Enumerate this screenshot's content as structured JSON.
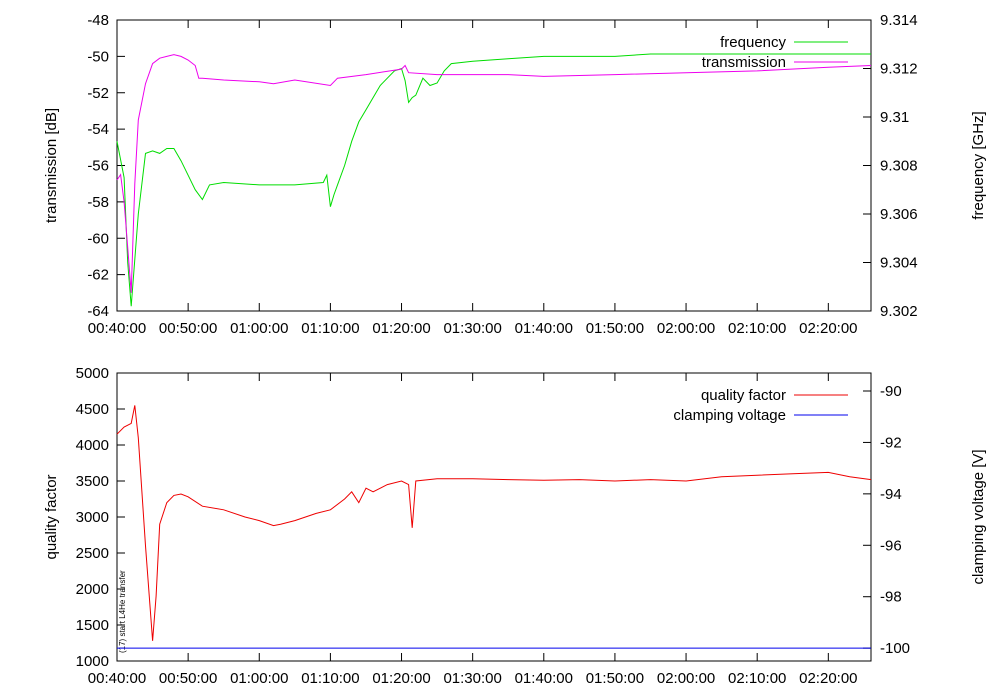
{
  "chart_data": [
    {
      "type": "line",
      "x_ticks": [
        "00:40:00",
        "00:50:00",
        "01:00:00",
        "01:10:00",
        "01:20:00",
        "01:30:00",
        "01:40:00",
        "01:50:00",
        "02:00:00",
        "02:10:00",
        "02:20:00"
      ],
      "xlim_minutes": [
        40,
        146
      ],
      "y1": {
        "label": "transmission [dB]",
        "lim": [
          -64,
          -48
        ],
        "ticks": [
          "-64",
          "-62",
          "-60",
          "-58",
          "-56",
          "-54",
          "-52",
          "-50",
          "-48"
        ]
      },
      "y2": {
        "label": "frequency [GHz]",
        "lim": [
          9.302,
          9.314
        ],
        "ticks": [
          "9.302",
          "9.304",
          "9.306",
          "9.308",
          "9.31",
          "9.312",
          "9.314"
        ]
      },
      "legend_position": "top-right",
      "series": [
        {
          "name": "frequency",
          "axis": "y2",
          "color": "#00dd00",
          "x": [
            40,
            41,
            41.5,
            42,
            43,
            44,
            45,
            46,
            47,
            48,
            49,
            50,
            51,
            52,
            53,
            55,
            60,
            65,
            69,
            69.5,
            70,
            70.5,
            71,
            72,
            73,
            74,
            75,
            76,
            77,
            78,
            79,
            80,
            80.5,
            81,
            81.5,
            82,
            83,
            84,
            85,
            86,
            87,
            90,
            95,
            100,
            105,
            110,
            115,
            120,
            130,
            140,
            146
          ],
          "y": [
            9.309,
            9.3075,
            9.304,
            9.3022,
            9.306,
            9.3085,
            9.3086,
            9.3085,
            9.3087,
            9.3087,
            9.3082,
            9.3076,
            9.307,
            9.3066,
            9.3072,
            9.3073,
            9.3072,
            9.3072,
            9.3073,
            9.3076,
            9.3063,
            9.3068,
            9.3072,
            9.308,
            9.309,
            9.3098,
            9.3103,
            9.3108,
            9.3113,
            9.3116,
            9.3119,
            9.312,
            9.3115,
            9.3106,
            9.3108,
            9.3109,
            9.3116,
            9.3113,
            9.3114,
            9.3119,
            9.3122,
            9.3123,
            9.3124,
            9.3125,
            9.3125,
            9.3125,
            9.3126,
            9.3126,
            9.3126,
            9.3126,
            9.3126
          ]
        },
        {
          "name": "transmission",
          "axis": "y1",
          "color": "#ee00ee",
          "x": [
            40,
            40.5,
            41,
            41.5,
            42,
            42.5,
            43,
            44,
            45,
            46,
            47,
            48,
            49,
            50,
            51,
            51.5,
            52,
            55,
            60,
            62,
            65,
            70,
            71,
            75,
            80,
            80.5,
            81,
            85,
            90,
            95,
            100,
            110,
            120,
            130,
            140,
            146
          ],
          "y": [
            -56.8,
            -56.5,
            -58,
            -60.5,
            -63,
            -57,
            -53.5,
            -51.5,
            -50.4,
            -50.1,
            -50,
            -49.9,
            -50,
            -50.2,
            -50.5,
            -51.2,
            -51.2,
            -51.3,
            -51.4,
            -51.5,
            -51.3,
            -51.6,
            -51.2,
            -51.0,
            -50.7,
            -50.5,
            -50.9,
            -51.0,
            -51.0,
            -51.0,
            -51.1,
            -51.0,
            -50.9,
            -50.8,
            -50.6,
            -50.5
          ]
        }
      ]
    },
    {
      "type": "line",
      "x_ticks": [
        "00:40:00",
        "00:50:00",
        "01:00:00",
        "01:10:00",
        "01:20:00",
        "01:30:00",
        "01:40:00",
        "01:50:00",
        "02:00:00",
        "02:10:00",
        "02:20:00"
      ],
      "xlim_minutes": [
        40,
        146
      ],
      "y1": {
        "label": "quality factor",
        "lim": [
          1000,
          5000
        ],
        "ticks": [
          "1000",
          "1500",
          "2000",
          "2500",
          "3000",
          "3500",
          "4000",
          "4500",
          "5000"
        ]
      },
      "y2": {
        "label": "clamping voltage [V]",
        "lim": [
          -100.5,
          -89.3
        ],
        "ticks": [
          "-100",
          "-98",
          "-96",
          "-94",
          "-92",
          "-90"
        ]
      },
      "legend_position": "top-right",
      "annotation": "(17) start L4He transfer",
      "series": [
        {
          "name": "quality factor",
          "axis": "y1",
          "color": "#ee0000",
          "x": [
            40,
            41,
            42,
            42.5,
            43,
            44,
            45,
            45.5,
            46,
            47,
            48,
            49,
            50,
            52,
            55,
            58,
            60,
            62,
            63,
            65,
            68,
            70,
            72,
            73,
            74,
            75,
            76,
            78,
            80,
            81,
            81.5,
            82,
            85,
            90,
            95,
            100,
            105,
            110,
            115,
            120,
            125,
            130,
            135,
            140,
            143,
            146
          ],
          "y": [
            4150,
            4250,
            4300,
            4550,
            4100,
            2600,
            1280,
            1900,
            2900,
            3200,
            3300,
            3320,
            3280,
            3150,
            3100,
            3000,
            2950,
            2880,
            2900,
            2950,
            3050,
            3100,
            3250,
            3350,
            3200,
            3400,
            3350,
            3450,
            3500,
            3450,
            2850,
            3500,
            3530,
            3530,
            3520,
            3510,
            3520,
            3500,
            3520,
            3500,
            3560,
            3580,
            3600,
            3620,
            3560,
            3520
          ]
        },
        {
          "name": "clamping voltage",
          "axis": "y2",
          "color": "#0000ee",
          "x": [
            40,
            146
          ],
          "y": [
            -100,
            -100
          ]
        }
      ]
    }
  ]
}
